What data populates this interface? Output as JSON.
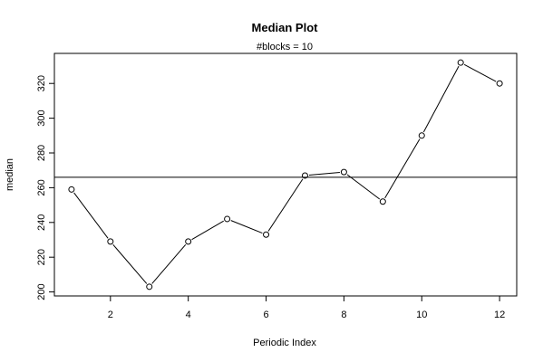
{
  "chart_data": {
    "type": "line",
    "title": "Median Plot",
    "subtitle": "#blocks =  10",
    "xlabel": "Periodic Index",
    "ylabel": "median",
    "x": [
      1,
      2,
      3,
      4,
      5,
      6,
      7,
      8,
      9,
      10,
      11,
      12
    ],
    "series": [
      {
        "values": [
          259,
          229,
          203,
          229,
          242,
          233,
          267,
          269,
          252,
          290,
          332,
          320
        ]
      }
    ],
    "reference_line": {
      "type": "horizontal",
      "y": 266
    },
    "xlim": [
      0.56,
      12.44
    ],
    "ylim": [
      197.7,
      337.3
    ],
    "xticks": [
      2,
      4,
      6,
      8,
      10,
      12
    ],
    "yticks": [
      200,
      220,
      240,
      260,
      280,
      300,
      320
    ],
    "grid": false,
    "line_color": "#000000",
    "marker": "open-circle"
  }
}
